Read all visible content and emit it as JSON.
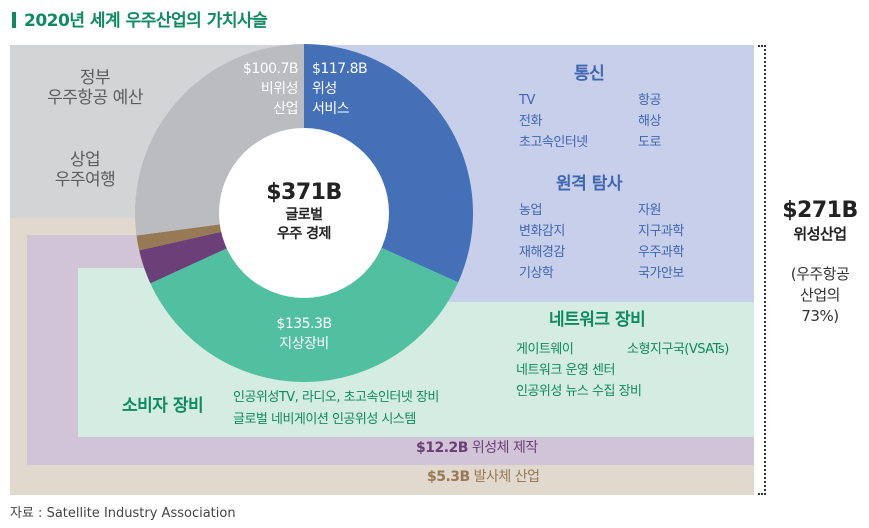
{
  "title": "2020년 세계 우주산업의 가치사슬",
  "center": {
    "value": "$371B",
    "label1": "글로벌",
    "label2": "우주 경제"
  },
  "gov": {
    "line1": "정부",
    "line2": "우주항공 예산"
  },
  "tourism": {
    "line1": "상업",
    "line2": "우주여행"
  },
  "nonsat": {
    "value": "$100.7B",
    "line1": "비위성",
    "line2": "산업"
  },
  "satserv": {
    "value": "$117.8B",
    "line1": "위성",
    "line2": "서비스"
  },
  "comm": {
    "heading": "통신",
    "items": [
      "TV",
      "항공",
      "전화",
      "해상",
      "초고속인터넷",
      "도로"
    ]
  },
  "remote": {
    "heading": "원격 탐사",
    "items": [
      "농업",
      "자원",
      "변화감지",
      "지구과학",
      "재해경감",
      "우주과학",
      "기상학",
      "국가안보"
    ]
  },
  "ground": {
    "value": "$135.3B",
    "label": "지상장비"
  },
  "network": {
    "heading": "네트워크 장비",
    "items": [
      "게이트웨이",
      "소형지구국(VSATs)",
      "네트워크 운영 센터",
      "인공위성 뉴스 수집 장비"
    ]
  },
  "consumer": {
    "heading": "소비자 장비",
    "items": [
      "인공위성TV, 라디오, 초고속인터넷 장비",
      "글로벌 네비게이션 인공위성 시스템"
    ]
  },
  "manufacturing": {
    "value": "$12.2B",
    "label": "위성체 제작"
  },
  "launch": {
    "value": "$5.3B",
    "label": "발사체 산업"
  },
  "satind": {
    "value": "$271B",
    "label": "위성산업",
    "note1": "(우주항공",
    "note2": "산업의",
    "note3": "73%)"
  },
  "source": "자료 : Satellite Industry Association",
  "chart_data": {
    "type": "pie",
    "title": "2020년 세계 우주산업의 가치사슬",
    "total": 371,
    "categories": [
      "위성 서비스",
      "지상장비",
      "위성체 제작",
      "발사체 산업",
      "비위성 산업"
    ],
    "values": [
      117.8,
      135.3,
      12.2,
      5.3,
      100.7
    ],
    "colors": [
      "#4470b8",
      "#50c0a0",
      "#6b3f78",
      "#957a55",
      "#bbbcbf"
    ]
  }
}
